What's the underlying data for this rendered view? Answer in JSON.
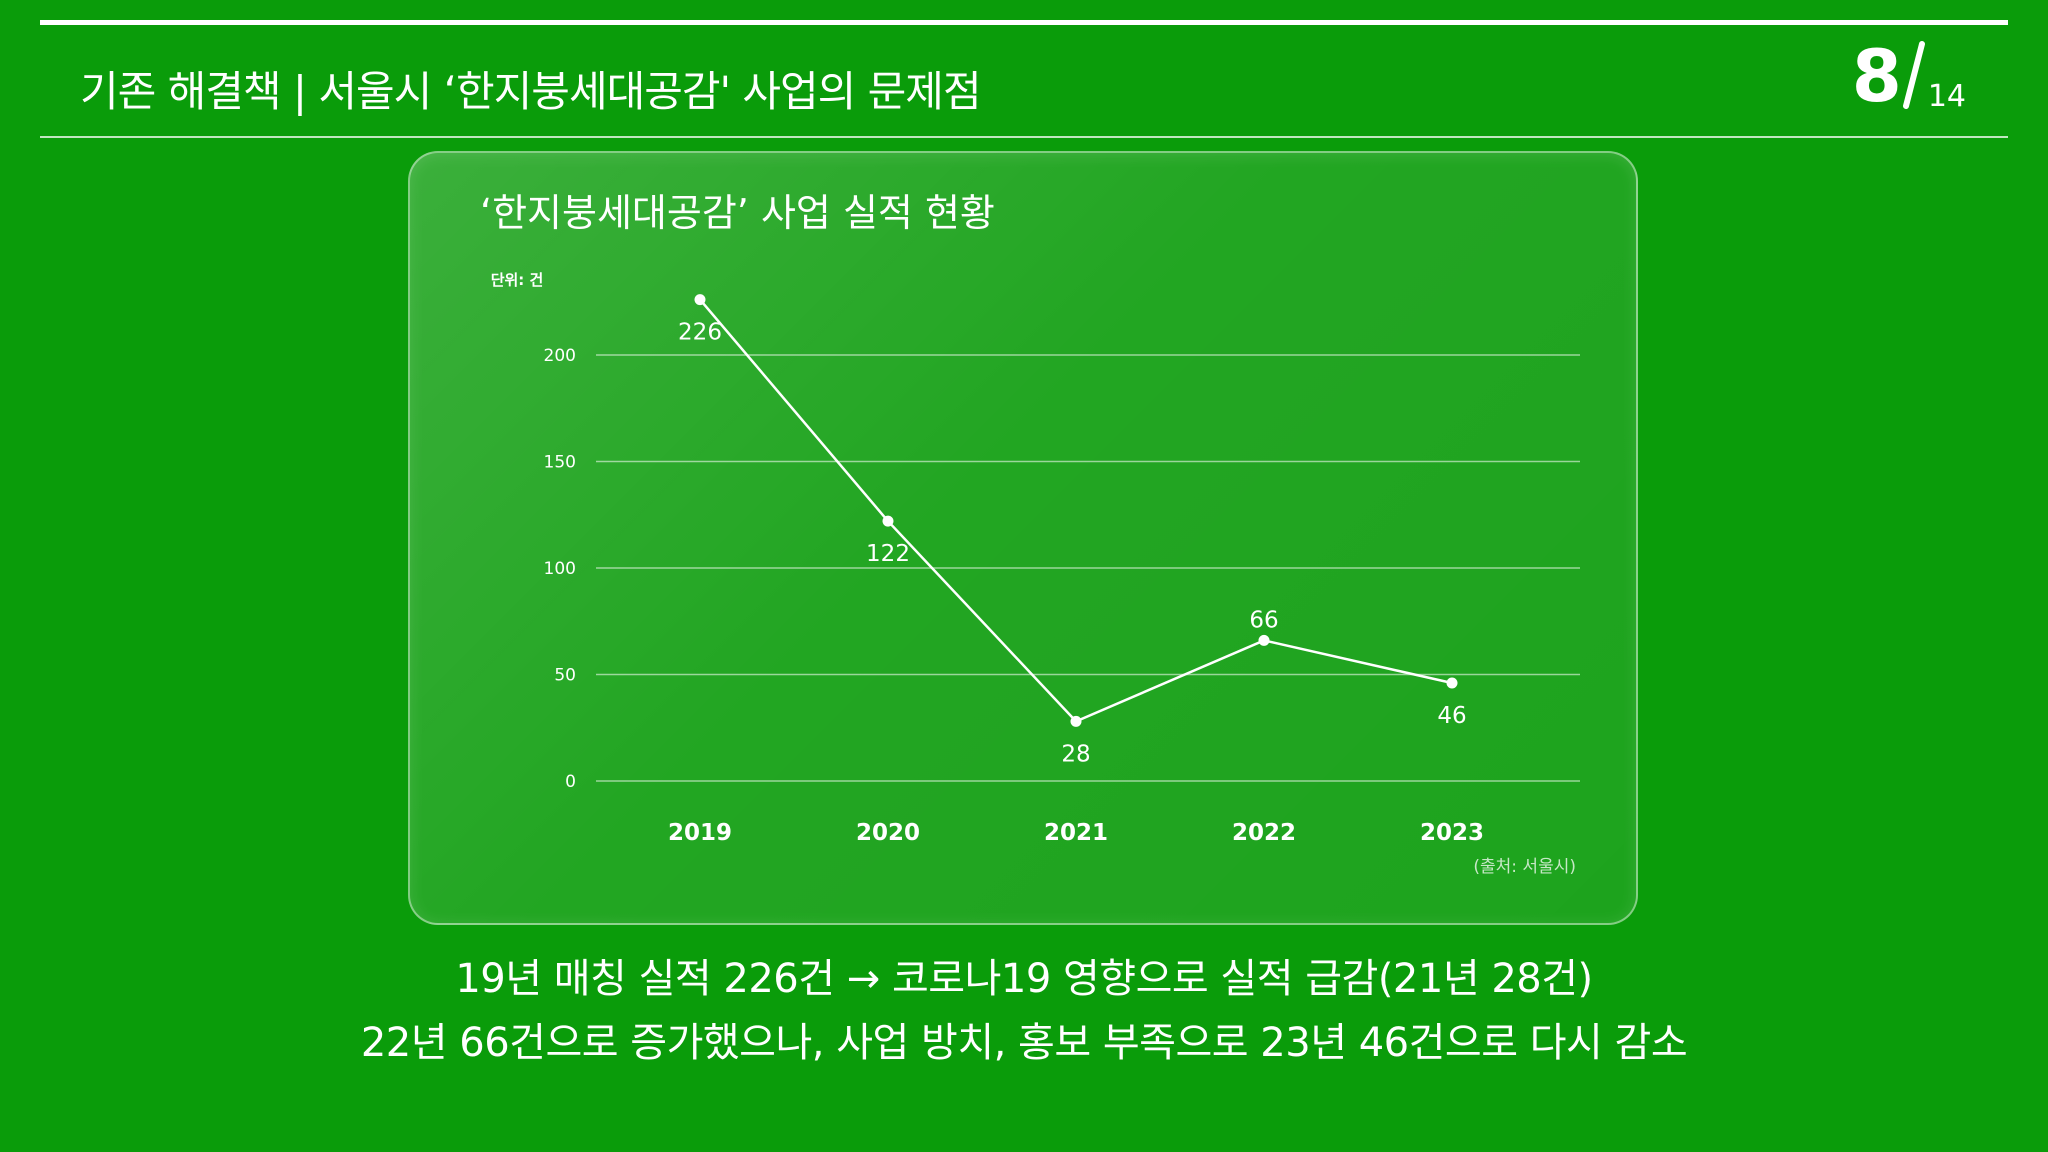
{
  "header": {
    "title": "기존 해결책 | 서울시 ‘한지붕세대공감' 사업의 문제점",
    "page_current": "8",
    "page_total": "14"
  },
  "chart_data": {
    "type": "line",
    "title": "‘한지붕세대공감’ 사업 실적 현황",
    "unit_label": "단위: 건",
    "categories": [
      "2019",
      "2020",
      "2021",
      "2022",
      "2023"
    ],
    "series": [
      {
        "values": [
          226,
          122,
          28,
          66,
          46
        ]
      }
    ],
    "data_labels": [
      "226",
      "122",
      "28",
      "66",
      "46"
    ],
    "y_ticks": [
      "0",
      "50",
      "100",
      "150",
      "200"
    ],
    "ylim": [
      0,
      200
    ],
    "grid": true,
    "source": "(출처: 서울시)"
  },
  "captions": [
    "19년 매칭 실적 226건 → 코로나19 영향으로 실적 급감(21년 28건)",
    "22년 66건으로 증가했으나, 사업 방치, 홍보 부족으로 23년 46건으로 다시 감소"
  ]
}
